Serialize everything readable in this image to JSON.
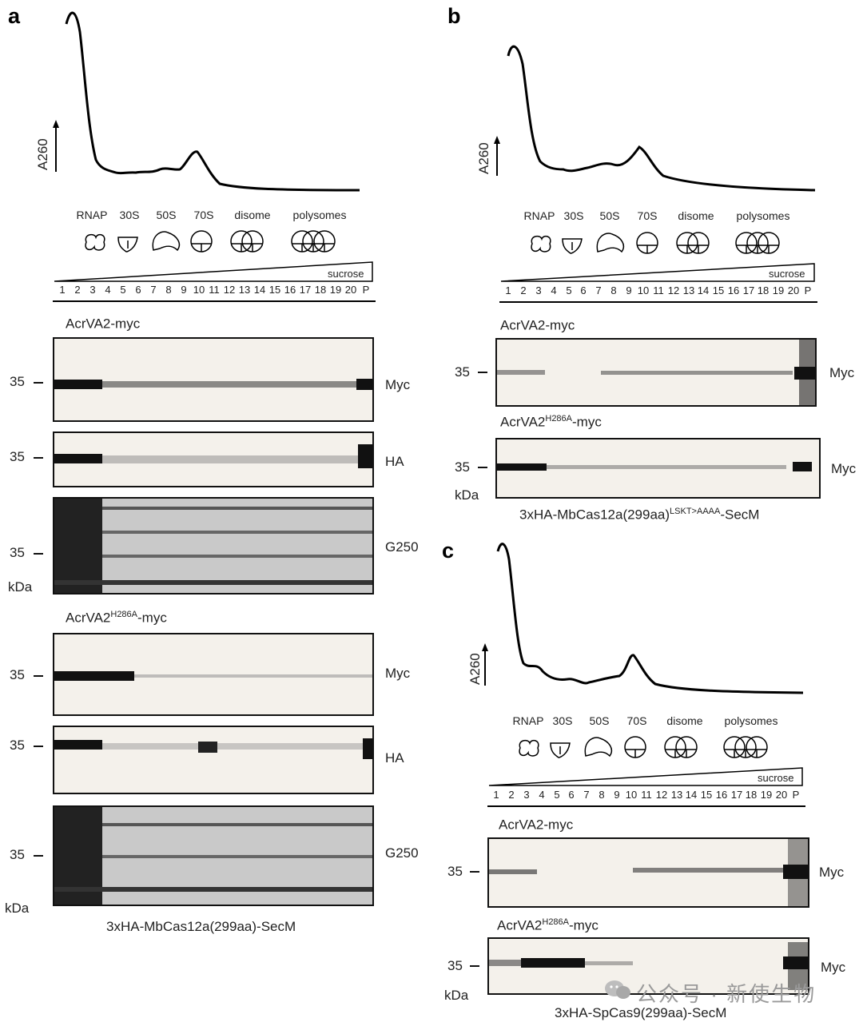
{
  "panels": [
    {
      "letter": "a",
      "y_axis_label": "A260",
      "fractions": [
        "RNAP",
        "30S",
        "50S",
        "70S",
        "disome",
        "polysomes"
      ],
      "gradient_label": "sucrose",
      "lanes": [
        "1",
        "2",
        "3",
        "4",
        "5",
        "6",
        "7",
        "8",
        "9",
        "10",
        "11",
        "12",
        "13",
        "14",
        "15",
        "16",
        "17",
        "18",
        "19",
        "20",
        "P"
      ],
      "groups": [
        {
          "title_main": "AcrVA2",
          "title_sup": "",
          "title_tail": "-myc",
          "blots": [
            {
              "label": "Myc",
              "marker": "35"
            },
            {
              "label": "HA",
              "marker": "35"
            },
            {
              "label": "G250",
              "marker": "35"
            }
          ],
          "unit": "kDa"
        },
        {
          "title_main": "AcrVA2",
          "title_sup": "H286A",
          "title_tail": "-myc",
          "blots": [
            {
              "label": "Myc",
              "marker": "35"
            },
            {
              "label": "HA",
              "marker": "35"
            },
            {
              "label": "G250",
              "marker": "35"
            }
          ],
          "unit": "kDa"
        }
      ],
      "caption": "3xHA-MbCas12a(299aa)-SecM"
    },
    {
      "letter": "b",
      "y_axis_label": "A260",
      "fractions": [
        "RNAP",
        "30S",
        "50S",
        "70S",
        "disome",
        "polysomes"
      ],
      "gradient_label": "sucrose",
      "lanes": [
        "1",
        "2",
        "3",
        "4",
        "5",
        "6",
        "7",
        "8",
        "9",
        "10",
        "11",
        "12",
        "13",
        "14",
        "15",
        "16",
        "17",
        "18",
        "19",
        "20",
        "P"
      ],
      "groups": [
        {
          "title_main": "AcrVA2",
          "title_sup": "",
          "title_tail": "-myc",
          "blots": [
            {
              "label": "Myc",
              "marker": "35"
            }
          ]
        },
        {
          "title_main": "AcrVA2",
          "title_sup": "H286A",
          "title_tail": "-myc",
          "blots": [
            {
              "label": "Myc",
              "marker": "35"
            }
          ],
          "unit": "kDa"
        }
      ],
      "caption_main": "3xHA-MbCas12a(299aa)",
      "caption_sup": "LSKT>AAAA",
      "caption_tail": "-SecM"
    },
    {
      "letter": "c",
      "y_axis_label": "A260",
      "fractions": [
        "RNAP",
        "30S",
        "50S",
        "70S",
        "disome",
        "polysomes"
      ],
      "gradient_label": "sucrose",
      "lanes": [
        "1",
        "2",
        "3",
        "4",
        "5",
        "6",
        "7",
        "8",
        "9",
        "10",
        "11",
        "12",
        "13",
        "14",
        "15",
        "16",
        "17",
        "18",
        "19",
        "20",
        "P"
      ],
      "groups": [
        {
          "title_main": "AcrVA2",
          "title_sup": "",
          "title_tail": "-myc",
          "blots": [
            {
              "label": "Myc",
              "marker": "35"
            }
          ]
        },
        {
          "title_main": "AcrVA2",
          "title_sup": "H286A",
          "title_tail": "-myc",
          "blots": [
            {
              "label": "Myc",
              "marker": "35"
            }
          ],
          "unit": "kDa"
        }
      ],
      "caption": "3xHA-SpCas9(299aa)-SecM"
    }
  ],
  "watermark": "公众号 · 新使生物"
}
